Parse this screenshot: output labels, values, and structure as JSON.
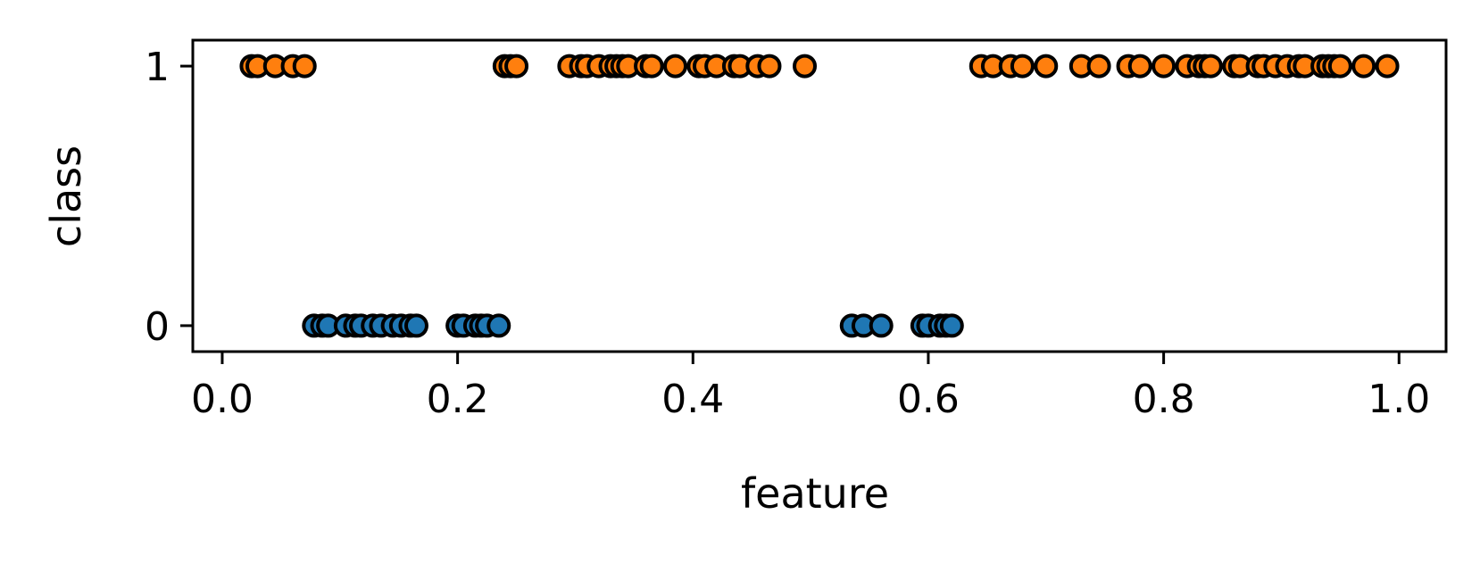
{
  "chart_data": {
    "type": "scatter",
    "title": "",
    "xlabel": "feature",
    "ylabel": "class",
    "xlim": [
      -0.025,
      1.04
    ],
    "ylim": [
      -0.1,
      1.1
    ],
    "xticks": [
      0.0,
      0.2,
      0.4,
      0.6,
      0.8,
      1.0
    ],
    "xtick_labels": [
      "0.0",
      "0.2",
      "0.4",
      "0.6",
      "0.8",
      "1.0"
    ],
    "yticks": [
      0,
      1
    ],
    "ytick_labels": [
      "0",
      "1"
    ],
    "grid": false,
    "legend": "none",
    "series": [
      {
        "color": "#1f77b4",
        "y": 0,
        "x": [
          0.078,
          0.085,
          0.09,
          0.105,
          0.113,
          0.118,
          0.128,
          0.135,
          0.145,
          0.152,
          0.16,
          0.165,
          0.2,
          0.205,
          0.215,
          0.22,
          0.225,
          0.235,
          0.535,
          0.545,
          0.56,
          0.595,
          0.6,
          0.61,
          0.615,
          0.62
        ]
      },
      {
        "color": "#ff7f0e",
        "y": 1,
        "x": [
          0.025,
          0.03,
          0.045,
          0.06,
          0.07,
          0.24,
          0.245,
          0.25,
          0.295,
          0.305,
          0.31,
          0.32,
          0.33,
          0.335,
          0.34,
          0.345,
          0.36,
          0.365,
          0.385,
          0.405,
          0.41,
          0.42,
          0.435,
          0.44,
          0.455,
          0.465,
          0.495,
          0.645,
          0.655,
          0.67,
          0.68,
          0.7,
          0.73,
          0.745,
          0.77,
          0.78,
          0.8,
          0.82,
          0.83,
          0.835,
          0.84,
          0.86,
          0.865,
          0.88,
          0.885,
          0.895,
          0.905,
          0.915,
          0.92,
          0.935,
          0.94,
          0.945,
          0.95,
          0.97,
          0.99
        ]
      }
    ]
  }
}
